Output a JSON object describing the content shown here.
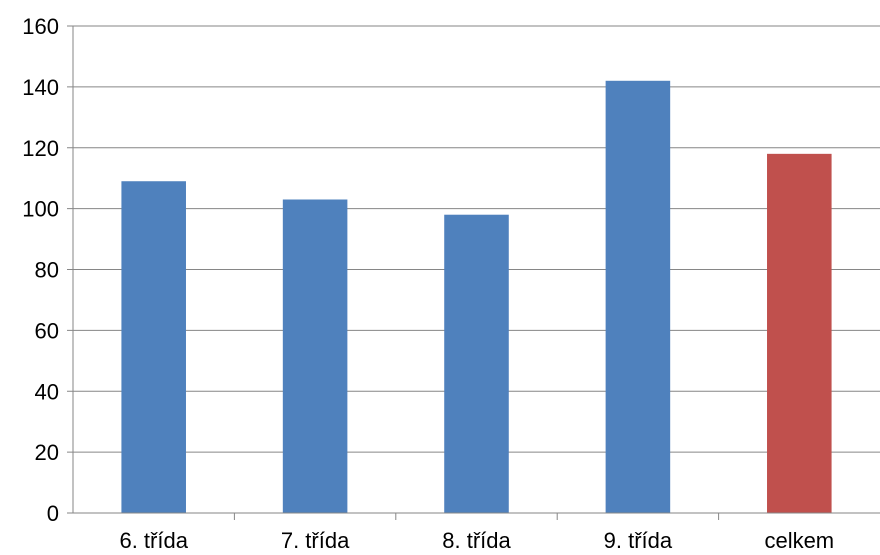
{
  "chart_data": {
    "type": "bar",
    "title": "",
    "xlabel": "",
    "ylabel": "",
    "categories": [
      "6. třída",
      "7. třída",
      "8. třída",
      "9. třída",
      "celkem"
    ],
    "values": [
      109,
      103,
      98,
      142,
      118
    ],
    "bar_colors": [
      "#4F81BD",
      "#4F81BD",
      "#4F81BD",
      "#4F81BD",
      "#C0504D"
    ],
    "ylim": [
      0,
      160
    ],
    "yticks": [
      0,
      20,
      40,
      60,
      80,
      100,
      120,
      140,
      160
    ],
    "grid": true,
    "gridline_color": "#868686",
    "legend": "none"
  }
}
